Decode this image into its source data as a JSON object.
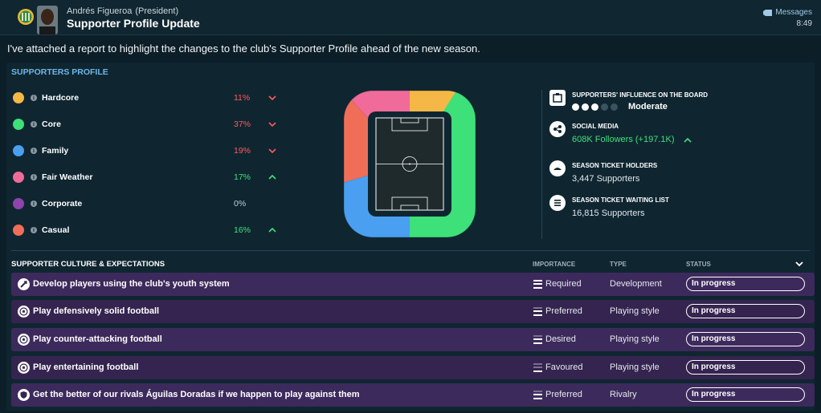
{
  "header": {
    "sender_name": "Andrés Figueroa",
    "sender_role": "(President)",
    "subject": "Supporter Profile Update",
    "messages_label": "Messages",
    "time": "8:49"
  },
  "intro_text": "I've attached a report to highlight the changes to the club's Supporter Profile ahead of the new season.",
  "profile": {
    "title": "SUPPORTERS PROFILE",
    "segments": [
      {
        "name": "Hardcore",
        "percent": "11%",
        "trend": "down",
        "color": "#f5b846"
      },
      {
        "name": "Core",
        "percent": "37%",
        "trend": "down",
        "color": "#3ee07a"
      },
      {
        "name": "Family",
        "percent": "19%",
        "trend": "down",
        "color": "#4a9ff0"
      },
      {
        "name": "Fair Weather",
        "percent": "17%",
        "trend": "up",
        "color": "#f06a9a"
      },
      {
        "name": "Corporate",
        "percent": "0%",
        "trend": "none",
        "color": "#8e44ad"
      },
      {
        "name": "Casual",
        "percent": "16%",
        "trend": "up",
        "color": "#f06e58"
      }
    ],
    "stats": {
      "influence_label": "SUPPORTERS' INFLUENCE ON THE BOARD",
      "influence_value": "Moderate",
      "influence_level": 3,
      "influence_max": 5,
      "social_label": "SOCIAL MEDIA",
      "social_value": "608K Followers (+197.1K)",
      "season_ticket_label": "SEASON TICKET HOLDERS",
      "season_ticket_value": "3,447 Supporters",
      "waiting_label": "SEASON TICKET WAITING LIST",
      "waiting_value": "16,815 Supporters"
    }
  },
  "culture": {
    "title": "SUPPORTER CULTURE & EXPECTATIONS",
    "columns": {
      "importance": "IMPORTANCE",
      "type": "TYPE",
      "status": "STATUS"
    },
    "rows": [
      {
        "text": "Develop players using the club's youth system",
        "importance": "Required",
        "level": 3,
        "type": "Development",
        "status": "In progress",
        "icon": "youth-icon"
      },
      {
        "text": "Play defensively solid football",
        "importance": "Preferred",
        "level": 2,
        "type": "Playing style",
        "status": "In progress",
        "icon": "football-icon"
      },
      {
        "text": "Play counter-attacking football",
        "importance": "Desired",
        "level": 2,
        "type": "Playing style",
        "status": "In progress",
        "icon": "football-icon"
      },
      {
        "text": "Play entertaining football",
        "importance": "Favoured",
        "level": 1,
        "type": "Playing style",
        "status": "In progress",
        "icon": "football-icon"
      },
      {
        "text": "Get the better of our rivals Águilas Doradas if we happen to play against them",
        "importance": "Preferred",
        "level": 2,
        "type": "Rivalry",
        "status": "In progress",
        "icon": "rivalry-shield-icon"
      }
    ]
  }
}
